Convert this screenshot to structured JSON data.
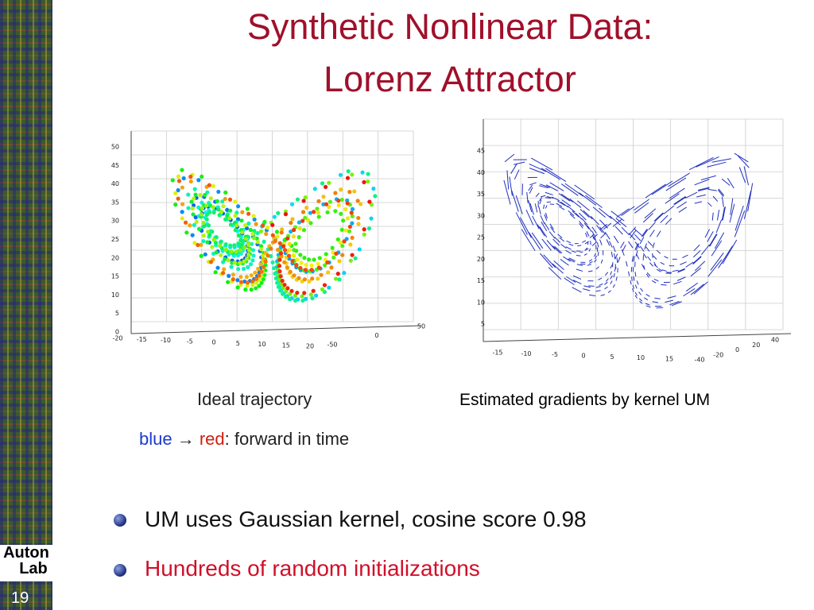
{
  "header": {
    "title_line1": "Synthetic Nonlinear Data:",
    "title_line2": "Lorenz Attractor"
  },
  "figures": [
    {
      "caption": "Ideal trajectory",
      "z_ticks": [
        0,
        5,
        10,
        15,
        20,
        25,
        30,
        35,
        40,
        45,
        50
      ],
      "x_ticks": [
        -20,
        -15,
        -10,
        -5,
        0,
        5,
        10,
        15,
        20
      ],
      "y_ticks": [
        -50,
        0,
        50
      ]
    },
    {
      "caption": "Estimated gradients by kernel UM",
      "z_ticks": [
        5,
        10,
        15,
        20,
        25,
        30,
        35,
        40,
        45
      ],
      "x_ticks": [
        -15,
        -10,
        -5,
        0,
        5,
        10,
        15
      ],
      "y_ticks": [
        -40,
        -20,
        0,
        20,
        40
      ]
    }
  ],
  "legend": {
    "blue": "blue",
    "arrow": "→",
    "red": "red",
    "rest": ": forward in time"
  },
  "bullets": [
    "UM uses Gaussian kernel, cosine score 0.98",
    "Hundreds of random initializations"
  ],
  "logo": {
    "top": "Auton",
    "bottom": "Lab"
  },
  "page_number": "19"
}
